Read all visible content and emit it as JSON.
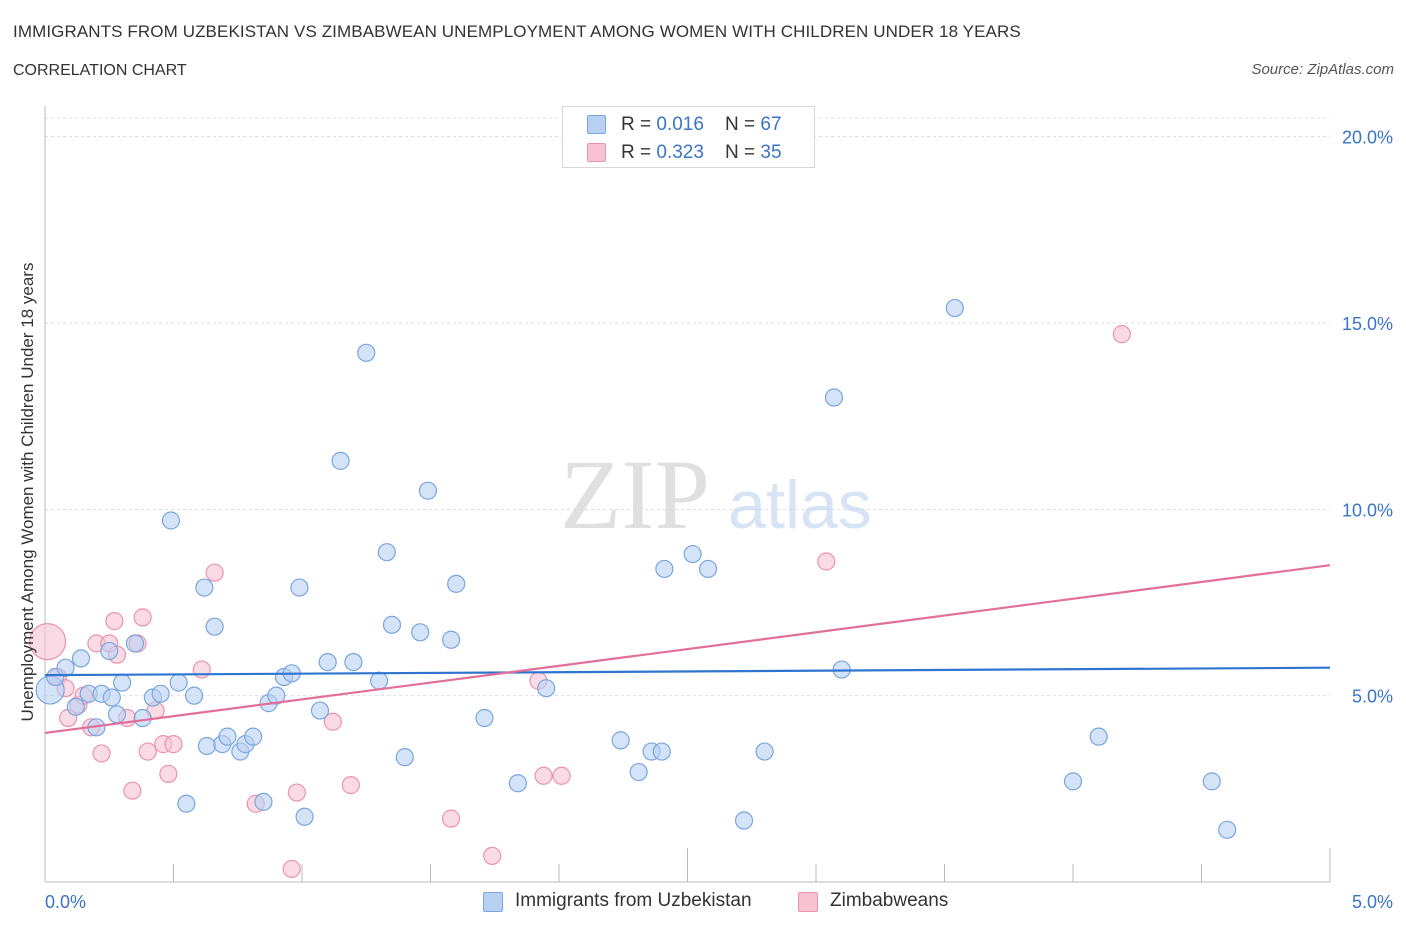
{
  "header": {
    "title": "IMMIGRANTS FROM UZBEKISTAN VS ZIMBABWEAN UNEMPLOYMENT AMONG WOMEN WITH CHILDREN UNDER 18 YEARS",
    "subtitle": "CORRELATION CHART",
    "source": "Source: ZipAtlas.com"
  },
  "watermark": {
    "zip": "ZIP",
    "atlas": "atlas"
  },
  "colors": {
    "blue_fill": "#b8d1f3",
    "blue_stroke": "#7aa6de",
    "blue_line": "#2f75d0",
    "pink_fill": "#f7c3d3",
    "pink_stroke": "#eb93b0",
    "pink_line": "#e36e99",
    "axis_text": "#3a74c8"
  },
  "legend_top": {
    "rows": [
      {
        "r_label": "R = ",
        "r_value": "0.016",
        "n_label": "N = ",
        "n_value": "67"
      },
      {
        "r_label": "R = ",
        "r_value": "0.323",
        "n_label": "N = ",
        "n_value": "35"
      }
    ]
  },
  "legend_bottom": {
    "items": [
      {
        "label": "Immigrants from Uzbekistan"
      },
      {
        "label": "Zimbabweans"
      }
    ]
  },
  "chart_data": {
    "type": "scatter",
    "title": "IMMIGRANTS FROM UZBEKISTAN VS ZIMBABWEAN UNEMPLOYMENT AMONG WOMEN WITH CHILDREN UNDER 18 YEARS",
    "xlabel": "",
    "ylabel": "Unemployment Among Women with Children Under 18 years",
    "xlim": [
      0,
      5
    ],
    "ylim": [
      0,
      20.5
    ],
    "x_tick_labels": [
      "0.0%",
      "5.0%"
    ],
    "y_ticks": [
      5,
      10,
      15,
      20
    ],
    "y_tick_labels": [
      "5.0%",
      "10.0%",
      "15.0%",
      "20.0%"
    ],
    "grid": true,
    "legend_position": "top-center",
    "series": [
      {
        "name": "Immigrants from Uzbekistan",
        "trend": {
          "x": [
            0,
            5
          ],
          "y": [
            5.55,
            5.75
          ]
        },
        "points": [
          {
            "x": 0.02,
            "y": 5.15
          },
          {
            "x": 0.04,
            "y": 5.5
          },
          {
            "x": 0.08,
            "y": 5.75
          },
          {
            "x": 0.12,
            "y": 4.7
          },
          {
            "x": 0.14,
            "y": 6.0
          },
          {
            "x": 0.17,
            "y": 5.05
          },
          {
            "x": 0.2,
            "y": 4.15
          },
          {
            "x": 0.22,
            "y": 5.05
          },
          {
            "x": 0.25,
            "y": 6.2
          },
          {
            "x": 0.26,
            "y": 4.95
          },
          {
            "x": 0.28,
            "y": 4.5
          },
          {
            "x": 0.3,
            "y": 5.35
          },
          {
            "x": 0.35,
            "y": 6.4
          },
          {
            "x": 0.38,
            "y": 4.4
          },
          {
            "x": 0.42,
            "y": 4.95
          },
          {
            "x": 0.45,
            "y": 5.05
          },
          {
            "x": 0.49,
            "y": 9.7
          },
          {
            "x": 0.52,
            "y": 5.35
          },
          {
            "x": 0.55,
            "y": 2.1
          },
          {
            "x": 0.58,
            "y": 5.0
          },
          {
            "x": 0.62,
            "y": 7.9
          },
          {
            "x": 0.63,
            "y": 3.65
          },
          {
            "x": 0.66,
            "y": 6.85
          },
          {
            "x": 0.69,
            "y": 3.7
          },
          {
            "x": 0.71,
            "y": 3.9
          },
          {
            "x": 0.76,
            "y": 3.5
          },
          {
            "x": 0.78,
            "y": 3.7
          },
          {
            "x": 0.81,
            "y": 3.9
          },
          {
            "x": 0.85,
            "y": 2.15
          },
          {
            "x": 0.87,
            "y": 4.8
          },
          {
            "x": 0.9,
            "y": 5.0
          },
          {
            "x": 0.93,
            "y": 5.5
          },
          {
            "x": 0.96,
            "y": 5.6
          },
          {
            "x": 0.99,
            "y": 7.9
          },
          {
            "x": 1.01,
            "y": 1.75
          },
          {
            "x": 1.07,
            "y": 4.6
          },
          {
            "x": 1.1,
            "y": 5.9
          },
          {
            "x": 1.15,
            "y": 11.3
          },
          {
            "x": 1.2,
            "y": 5.9
          },
          {
            "x": 1.25,
            "y": 14.2
          },
          {
            "x": 1.3,
            "y": 5.4
          },
          {
            "x": 1.33,
            "y": 8.85
          },
          {
            "x": 1.35,
            "y": 6.9
          },
          {
            "x": 1.4,
            "y": 3.35
          },
          {
            "x": 1.46,
            "y": 6.7
          },
          {
            "x": 1.49,
            "y": 10.5
          },
          {
            "x": 1.58,
            "y": 6.5
          },
          {
            "x": 1.6,
            "y": 8.0
          },
          {
            "x": 1.71,
            "y": 4.4
          },
          {
            "x": 1.84,
            "y": 2.65
          },
          {
            "x": 1.95,
            "y": 5.2
          },
          {
            "x": 2.24,
            "y": 3.8
          },
          {
            "x": 2.31,
            "y": 2.95
          },
          {
            "x": 2.36,
            "y": 3.5
          },
          {
            "x": 2.4,
            "y": 3.5
          },
          {
            "x": 2.41,
            "y": 8.4
          },
          {
            "x": 2.52,
            "y": 8.8
          },
          {
            "x": 2.58,
            "y": 8.4
          },
          {
            "x": 2.72,
            "y": 1.65
          },
          {
            "x": 2.8,
            "y": 3.5
          },
          {
            "x": 3.07,
            "y": 13.0
          },
          {
            "x": 3.1,
            "y": 5.7
          },
          {
            "x": 3.54,
            "y": 15.4
          },
          {
            "x": 4.0,
            "y": 2.7
          },
          {
            "x": 4.1,
            "y": 3.9
          },
          {
            "x": 4.54,
            "y": 2.7
          },
          {
            "x": 4.6,
            "y": 1.4
          }
        ]
      },
      {
        "name": "Zimbabweans",
        "trend": {
          "x": [
            0,
            5
          ],
          "y": [
            4.0,
            8.5
          ]
        },
        "points": [
          {
            "x": 0.01,
            "y": 6.45
          },
          {
            "x": 0.05,
            "y": 5.5
          },
          {
            "x": 0.08,
            "y": 5.2
          },
          {
            "x": 0.09,
            "y": 4.4
          },
          {
            "x": 0.13,
            "y": 4.75
          },
          {
            "x": 0.15,
            "y": 5.0
          },
          {
            "x": 0.18,
            "y": 4.15
          },
          {
            "x": 0.2,
            "y": 6.4
          },
          {
            "x": 0.22,
            "y": 3.45
          },
          {
            "x": 0.25,
            "y": 6.4
          },
          {
            "x": 0.27,
            "y": 7.0
          },
          {
            "x": 0.28,
            "y": 6.1
          },
          {
            "x": 0.32,
            "y": 4.4
          },
          {
            "x": 0.34,
            "y": 2.45
          },
          {
            "x": 0.36,
            "y": 6.4
          },
          {
            "x": 0.38,
            "y": 7.1
          },
          {
            "x": 0.4,
            "y": 3.5
          },
          {
            "x": 0.43,
            "y": 4.6
          },
          {
            "x": 0.46,
            "y": 3.7
          },
          {
            "x": 0.48,
            "y": 2.9
          },
          {
            "x": 0.5,
            "y": 3.7
          },
          {
            "x": 0.61,
            "y": 5.7
          },
          {
            "x": 0.66,
            "y": 8.3
          },
          {
            "x": 0.82,
            "y": 2.1
          },
          {
            "x": 0.96,
            "y": 0.35
          },
          {
            "x": 0.98,
            "y": 2.4
          },
          {
            "x": 1.12,
            "y": 4.3
          },
          {
            "x": 1.19,
            "y": 2.6
          },
          {
            "x": 1.58,
            "y": 1.7
          },
          {
            "x": 1.74,
            "y": 0.7
          },
          {
            "x": 1.92,
            "y": 5.4
          },
          {
            "x": 1.94,
            "y": 2.85
          },
          {
            "x": 2.01,
            "y": 2.85
          },
          {
            "x": 3.04,
            "y": 8.6
          },
          {
            "x": 4.19,
            "y": 14.7
          }
        ]
      }
    ]
  }
}
